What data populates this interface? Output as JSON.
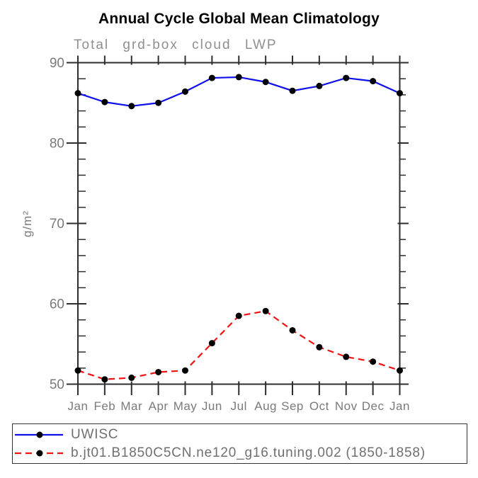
{
  "chart_data": {
    "type": "line",
    "title": "Annual Cycle Global Mean Climatology",
    "subtitle": "Total grd-box cloud LWP",
    "xlabel": "",
    "ylabel": "g/m²",
    "categories": [
      "Jan",
      "Feb",
      "Mar",
      "Apr",
      "May",
      "Jun",
      "Jul",
      "Aug",
      "Sep",
      "Oct",
      "Nov",
      "Dec",
      "Jan"
    ],
    "series": [
      {
        "name": "UWISC",
        "color": "#1010e8",
        "line_style": "solid",
        "marker": "circle",
        "marker_color": "#000000",
        "values": [
          86.2,
          85.1,
          84.6,
          85.0,
          86.4,
          88.1,
          88.2,
          87.6,
          86.5,
          87.1,
          88.1,
          87.7,
          86.2
        ]
      },
      {
        "name": "b.jt01.B1850C5CN.ne120_g16.tuning.002 (1850-1858)",
        "color": "#f21212",
        "line_style": "dashed",
        "marker": "circle",
        "marker_color": "#000000",
        "values": [
          51.7,
          50.6,
          50.8,
          51.5,
          51.7,
          55.1,
          58.5,
          59.1,
          56.7,
          54.6,
          53.4,
          52.8,
          51.7
        ]
      }
    ],
    "ylim": [
      50,
      90
    ],
    "y_major_ticks": [
      50,
      60,
      70,
      80,
      90
    ],
    "y_minor_step": 2,
    "grid": false,
    "legend_position": "bottom",
    "axis_color": "#2e2e2e",
    "axis_text_color": "#7a7a7a"
  }
}
